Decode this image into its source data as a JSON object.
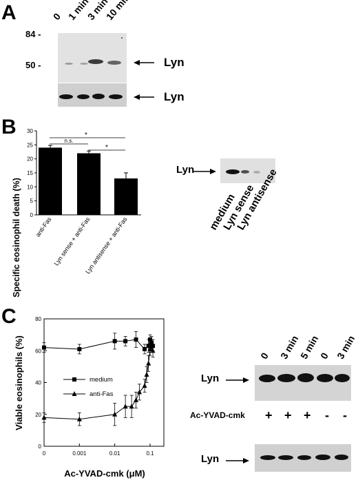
{
  "panel_A": {
    "letter": "A",
    "lanes": [
      "0",
      "1 min",
      "3 min",
      "10 min"
    ],
    "markers": [
      "84 -",
      "50 -"
    ],
    "label_top": "Lyn",
    "label_bottom": "Lyn"
  },
  "panel_B": {
    "letter": "B",
    "bar_chart": {
      "ylabel": "Specific eosinophil death (%)",
      "yticks": [
        "0",
        "5",
        "10",
        "15",
        "20",
        "25",
        "30"
      ],
      "categories": [
        "anti-Fas",
        "Lyn sense + anti-Fas",
        "Lyn antisense + anti-Fas"
      ],
      "sig_ns": "n.s.",
      "sig_star_1": "*",
      "sig_star_2": "*"
    },
    "blot": {
      "label": "Lyn",
      "lanes": [
        "medium",
        "Lyn sense",
        "Lyn antisense"
      ]
    }
  },
  "panel_C": {
    "letter": "C",
    "line_chart": {
      "ylabel": "Viable eosinophils (%)",
      "xlabel": "Ac-YVAD-cmk (μM)",
      "yticks": [
        "0",
        "20",
        "40",
        "60",
        "80"
      ],
      "xticks": [
        "0",
        "0.001",
        "0.01",
        "0.1"
      ],
      "legend_medium": "medium",
      "legend_antifas": "anti-Fas"
    },
    "blot": {
      "lanes": [
        "0",
        "3 min",
        "5 min",
        "0",
        "3 min"
      ],
      "label_top": "Lyn",
      "label_bottom": "Lyn",
      "treatment_label": "Ac-YVAD-cmk",
      "treatment_signs": [
        "+",
        "+",
        "+",
        "-",
        "-"
      ]
    }
  },
  "chart_data": [
    {
      "type": "bar",
      "ylabel": "Specific eosinophil death (%)",
      "categories": [
        "anti-Fas",
        "Lyn sense + anti-Fas",
        "Lyn antisense + anti-Fas"
      ],
      "values": [
        24,
        22,
        13
      ],
      "errors": [
        0.8,
        0.8,
        2
      ],
      "ylim": [
        0,
        30
      ]
    },
    {
      "type": "line",
      "xlabel": "Ac-YVAD-cmk (μM)",
      "ylabel": "Viable eosinophils (%)",
      "x_scale": "log",
      "xticks": [
        "0",
        "0.001",
        "0.01",
        "0.1"
      ],
      "ylim": [
        0,
        80
      ],
      "series": [
        {
          "name": "medium",
          "x": [
            0,
            0.001,
            0.01,
            0.02,
            0.04,
            0.07,
            0.09,
            0.1,
            0.11,
            0.12
          ],
          "values": [
            62,
            61,
            66,
            66,
            67,
            61,
            63,
            67,
            65,
            63
          ],
          "errors": [
            3,
            3,
            5,
            3,
            5,
            3,
            4,
            3,
            4,
            4
          ]
        },
        {
          "name": "anti-Fas",
          "x": [
            0,
            0.001,
            0.01,
            0.02,
            0.03,
            0.04,
            0.05,
            0.07,
            0.08,
            0.09,
            0.1,
            0.11,
            0.12
          ],
          "values": [
            18,
            17,
            20,
            25,
            25,
            29,
            34,
            38,
            45,
            52,
            61,
            63,
            60
          ],
          "errors": [
            3,
            4,
            7,
            7,
            7,
            5,
            5,
            4,
            5,
            5,
            4,
            4,
            4
          ]
        }
      ]
    }
  ]
}
